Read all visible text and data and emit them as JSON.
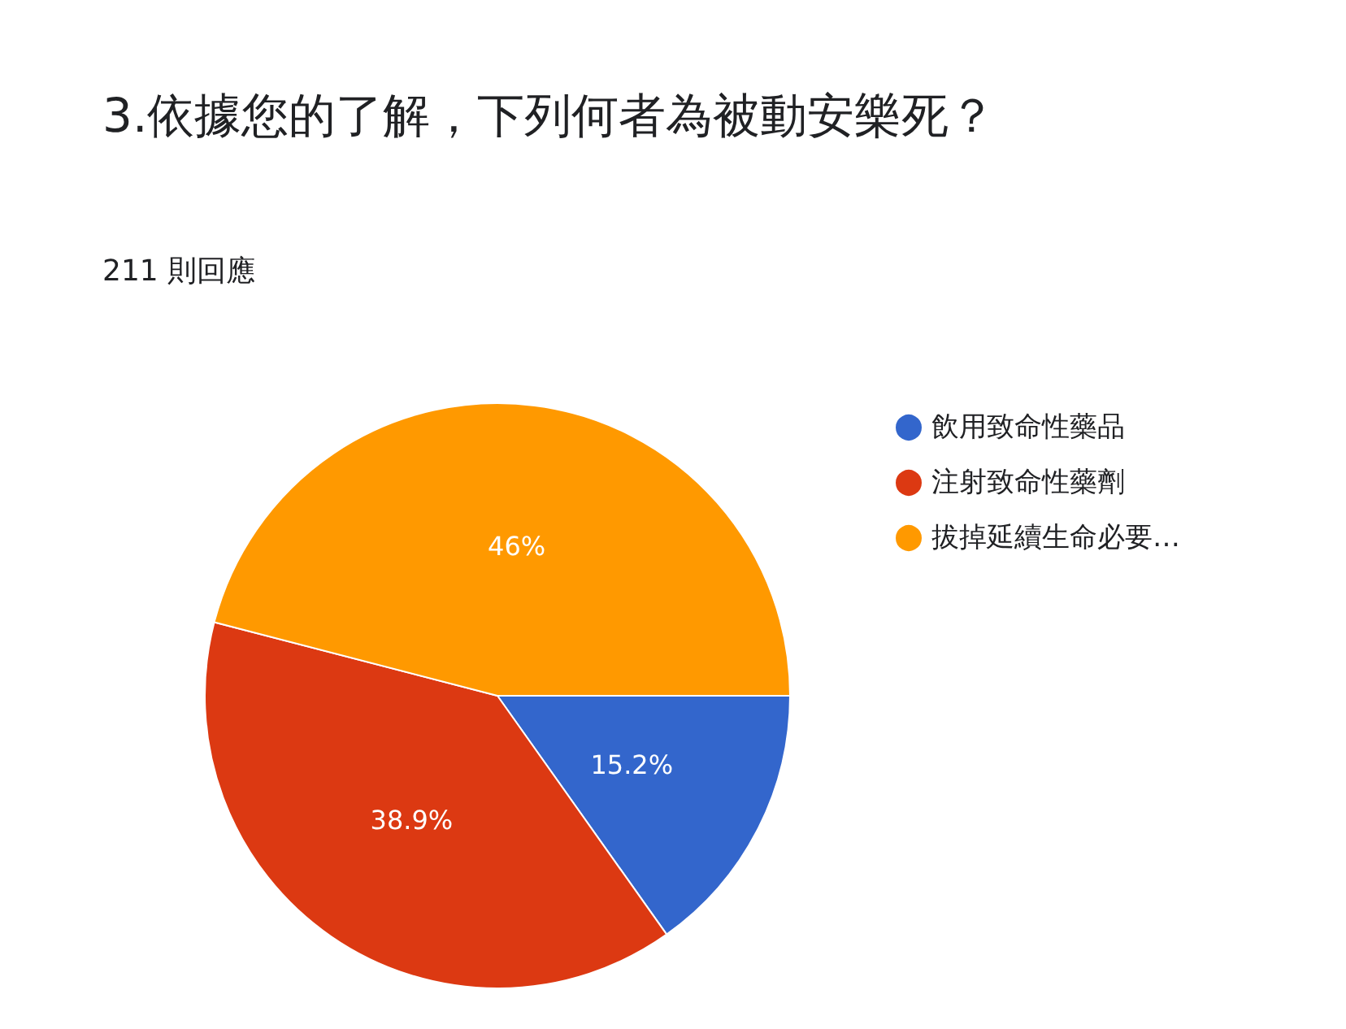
{
  "chart_data": {
    "type": "pie",
    "title": "3.依據您的了解，下列何者為被動安樂死？",
    "subtitle": "211 則回應",
    "categories": [
      "飲用致命性藥品",
      "注射致命性藥劑",
      "拔掉延續生命必要…"
    ],
    "values": [
      15.2,
      38.9,
      46
    ],
    "value_labels": [
      "15.2%",
      "38.9%",
      "46%"
    ],
    "colors": [
      "#3366cc",
      "#dc3912",
      "#ff9900"
    ],
    "legend": "right"
  }
}
